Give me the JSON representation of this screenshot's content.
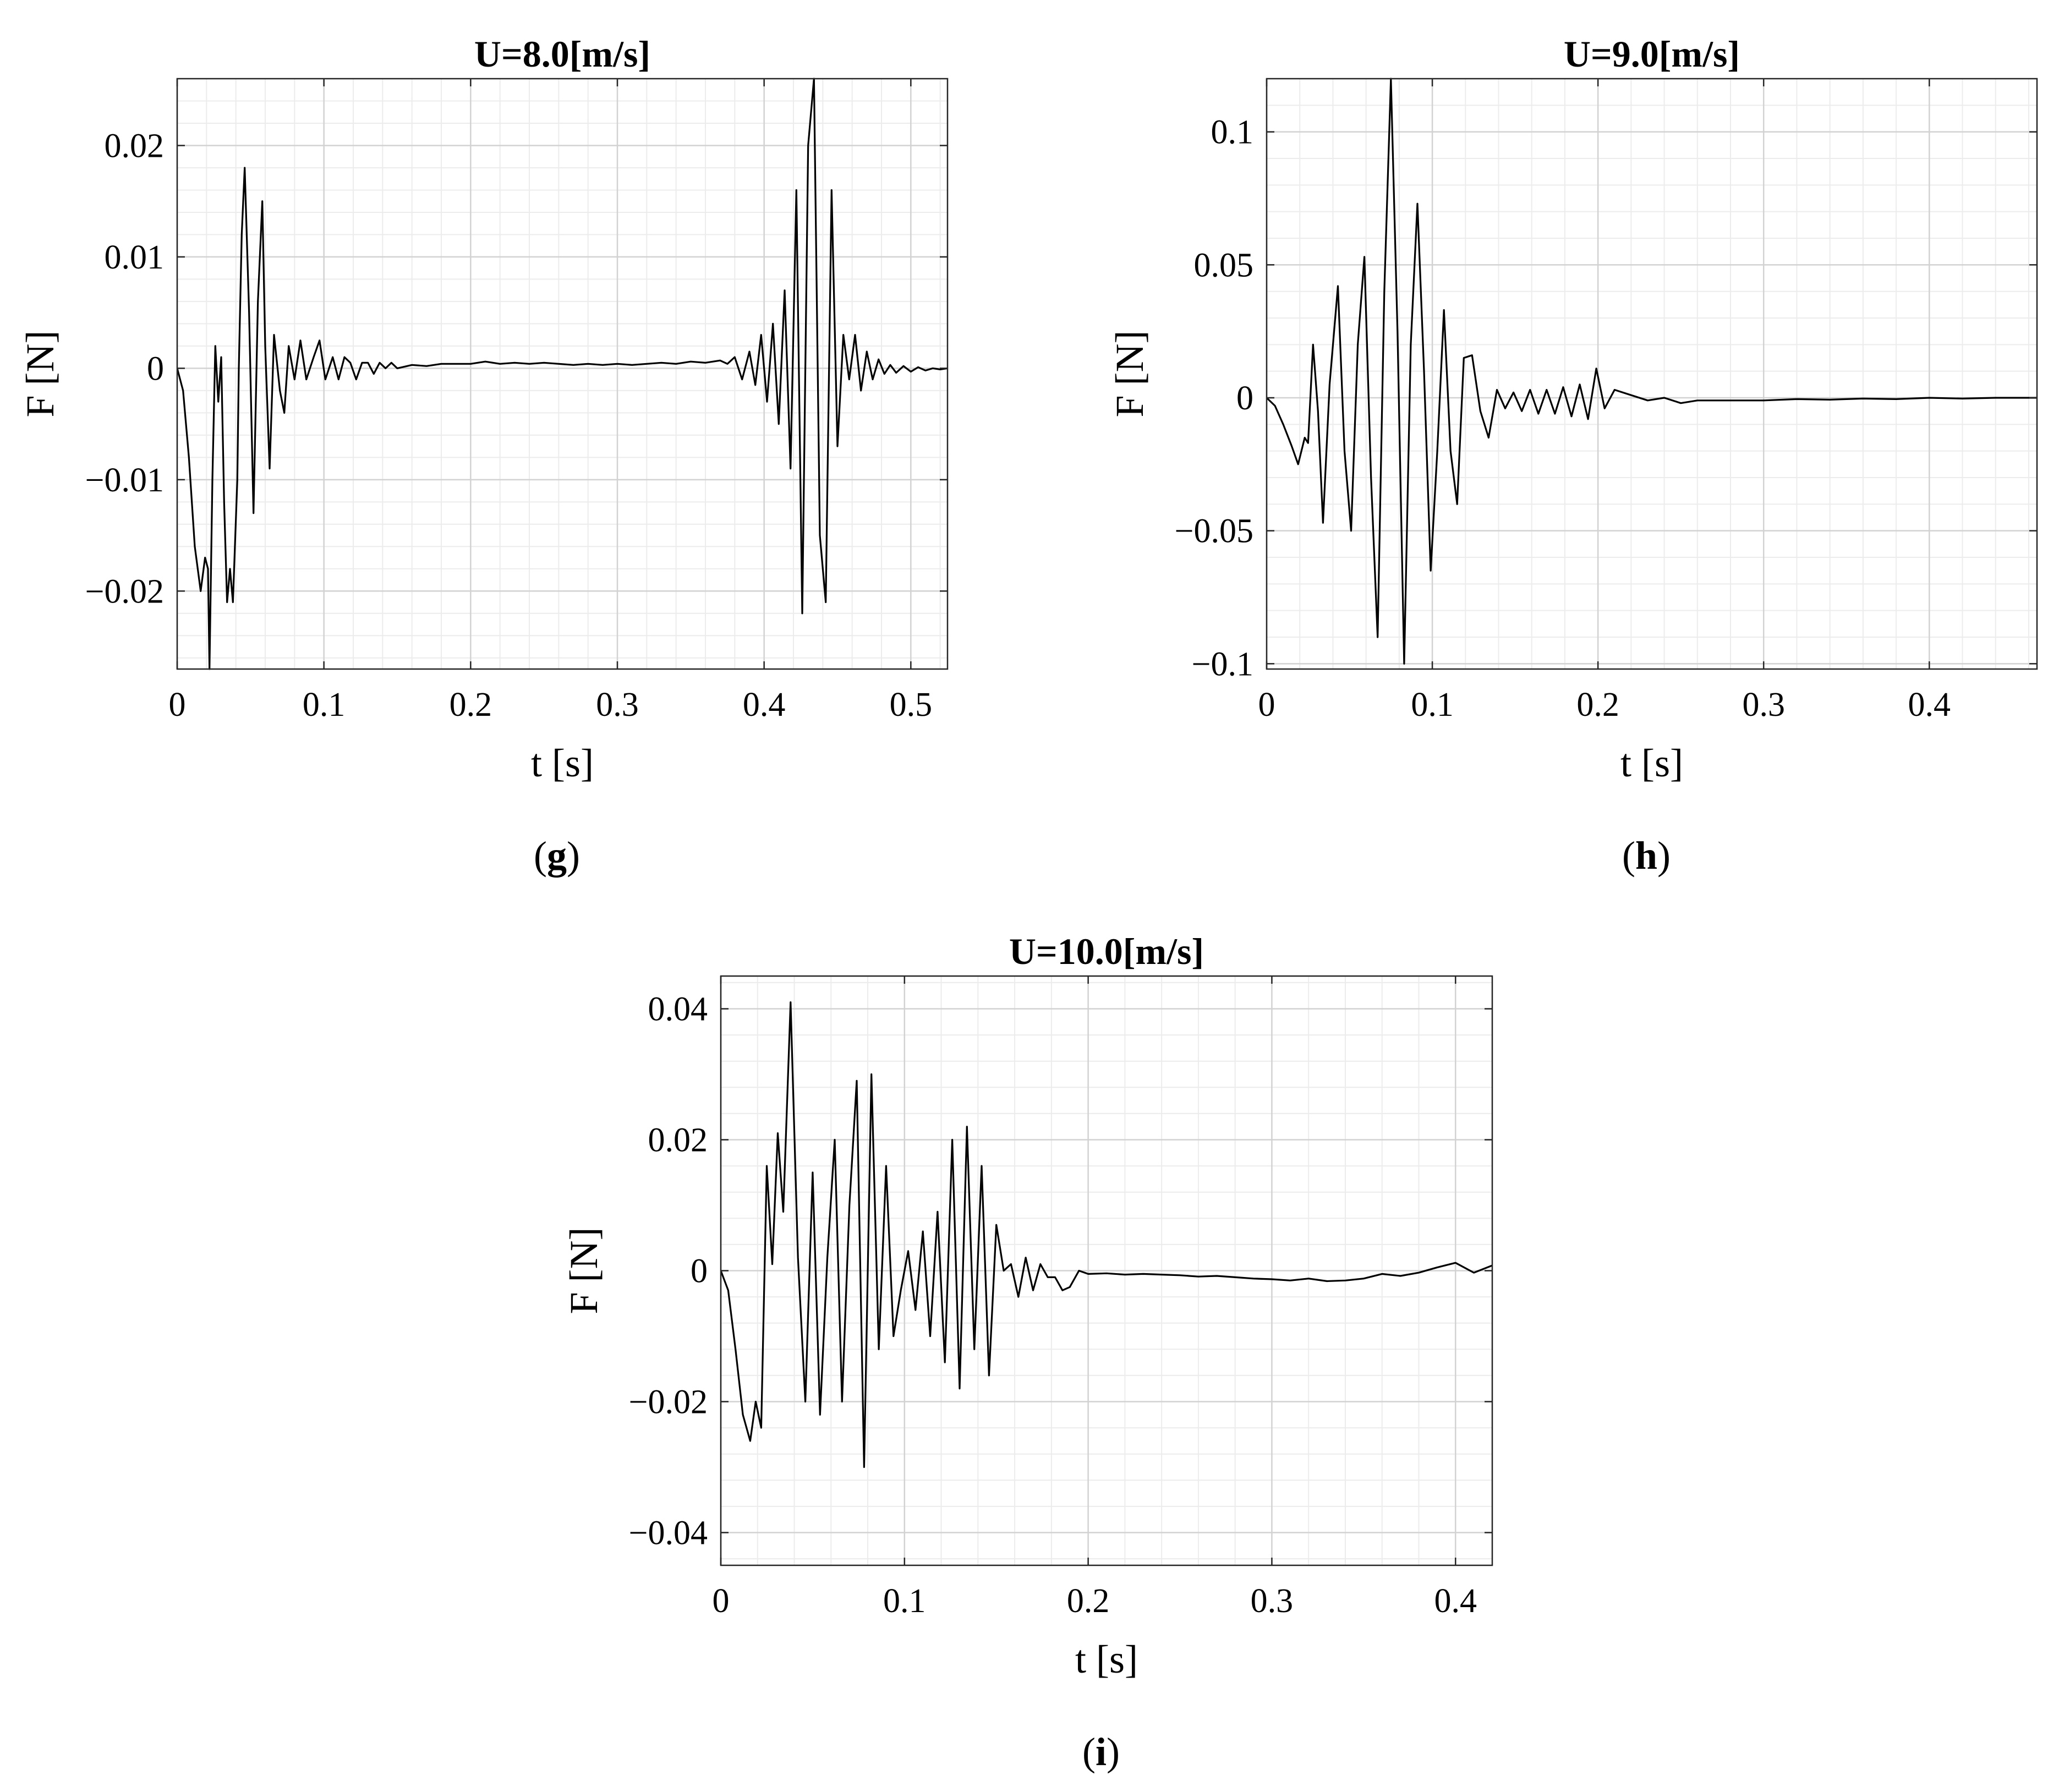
{
  "chart_data": [
    {
      "type": "line",
      "panel_label": "g",
      "title": "U=8.0[m/s]",
      "xlabel": "t [s]",
      "ylabel": "F [N]",
      "xlim": [
        0,
        0.525
      ],
      "ylim": [
        -0.027,
        0.026
      ],
      "xticks": [
        0,
        0.1,
        0.2,
        0.3,
        0.4,
        0.5
      ],
      "xtick_labels": [
        "0",
        "0.1",
        "0.2",
        "0.3",
        "0.4",
        "0.5"
      ],
      "yticks": [
        -0.02,
        -0.01,
        0,
        0.01,
        0.02
      ],
      "ytick_labels": [
        "-0.02",
        "-0.01",
        "0",
        "0.01",
        "0.02"
      ],
      "grid": "major+minor",
      "series": [
        {
          "color": "#000000",
          "x": [
            0,
            0.004,
            0.008,
            0.012,
            0.016,
            0.019,
            0.021,
            0.022,
            0.024,
            0.026,
            0.028,
            0.03,
            0.032,
            0.034,
            0.036,
            0.038,
            0.041,
            0.042,
            0.044,
            0.046,
            0.049,
            0.052,
            0.055,
            0.058,
            0.06,
            0.063,
            0.066,
            0.07,
            0.073,
            0.076,
            0.08,
            0.084,
            0.088,
            0.093,
            0.097,
            0.101,
            0.106,
            0.11,
            0.114,
            0.118,
            0.122,
            0.126,
            0.13,
            0.134,
            0.138,
            0.142,
            0.146,
            0.15,
            0.16,
            0.17,
            0.18,
            0.19,
            0.2,
            0.21,
            0.22,
            0.23,
            0.24,
            0.25,
            0.26,
            0.27,
            0.28,
            0.29,
            0.3,
            0.31,
            0.32,
            0.33,
            0.34,
            0.35,
            0.36,
            0.37,
            0.375,
            0.38,
            0.385,
            0.39,
            0.394,
            0.398,
            0.402,
            0.406,
            0.41,
            0.414,
            0.418,
            0.422,
            0.426,
            0.43,
            0.434,
            0.438,
            0.442,
            0.446,
            0.45,
            0.454,
            0.458,
            0.462,
            0.466,
            0.47,
            0.474,
            0.478,
            0.482,
            0.486,
            0.49,
            0.495,
            0.5,
            0.505,
            0.51,
            0.515,
            0.52,
            0.525
          ],
          "y": [
            0,
            -0.002,
            -0.008,
            -0.016,
            -0.02,
            -0.017,
            -0.018,
            -0.027,
            -0.01,
            0.002,
            -0.003,
            0.001,
            -0.012,
            -0.021,
            -0.018,
            -0.021,
            -0.01,
            0,
            0.012,
            0.018,
            0.005,
            -0.013,
            0.006,
            0.015,
            0.002,
            -0.009,
            0.003,
            -0.002,
            -0.004,
            0.002,
            -0.001,
            0.0025,
            -0.001,
            0.001,
            0.0025,
            -0.001,
            0.001,
            -0.001,
            0.001,
            0.0005,
            -0.001,
            0.0005,
            0.0005,
            -0.0005,
            0.0005,
            0,
            0.0005,
            0,
            0.0003,
            0.0002,
            0.0004,
            0.0004,
            0.0004,
            0.0006,
            0.0004,
            0.0005,
            0.0004,
            0.0005,
            0.0004,
            0.0003,
            0.0004,
            0.0003,
            0.0004,
            0.0003,
            0.0004,
            0.0005,
            0.0004,
            0.0006,
            0.0005,
            0.0007,
            0.0004,
            0.001,
            -0.001,
            0.0015,
            -0.0015,
            0.003,
            -0.003,
            0.004,
            -0.005,
            0.007,
            -0.009,
            0.016,
            -0.022,
            0.02,
            0.026,
            -0.015,
            -0.021,
            0.016,
            -0.007,
            0.003,
            -0.001,
            0.003,
            -0.002,
            0.0015,
            -0.001,
            0.0008,
            -0.0005,
            0.0003,
            -0.0004,
            0.0002,
            -0.0003,
            0.0001,
            -0.0002,
            0,
            -0.0001,
            0
          ]
        }
      ]
    },
    {
      "type": "line",
      "panel_label": "h",
      "title": "U=9.0[m/s]",
      "xlabel": "t [s]",
      "ylabel": "F [N]",
      "xlim": [
        0,
        0.465
      ],
      "ylim": [
        -0.102,
        0.12
      ],
      "xticks": [
        0,
        0.1,
        0.2,
        0.3,
        0.4
      ],
      "xtick_labels": [
        "0",
        "0.1",
        "0.2",
        "0.3",
        "0.4"
      ],
      "yticks": [
        -0.1,
        -0.05,
        0,
        0.05,
        0.1
      ],
      "ytick_labels": [
        "-0.1",
        "-0.05",
        "0",
        "0.05",
        "0.1"
      ],
      "grid": "major+minor",
      "series": [
        {
          "color": "#000000",
          "x": [
            0,
            0.005,
            0.01,
            0.015,
            0.019,
            0.023,
            0.025,
            0.028,
            0.031,
            0.034,
            0.038,
            0.043,
            0.047,
            0.051,
            0.055,
            0.059,
            0.063,
            0.067,
            0.071,
            0.075,
            0.079,
            0.083,
            0.087,
            0.091,
            0.095,
            0.099,
            0.103,
            0.107,
            0.111,
            0.115,
            0.119,
            0.124,
            0.129,
            0.134,
            0.139,
            0.144,
            0.149,
            0.154,
            0.159,
            0.164,
            0.169,
            0.174,
            0.179,
            0.184,
            0.189,
            0.194,
            0.199,
            0.204,
            0.21,
            0.22,
            0.23,
            0.24,
            0.25,
            0.26,
            0.28,
            0.3,
            0.32,
            0.34,
            0.36,
            0.38,
            0.4,
            0.42,
            0.44,
            0.465
          ],
          "y": [
            0,
            -0.003,
            -0.01,
            -0.018,
            -0.025,
            -0.015,
            -0.017,
            0.02,
            -0.005,
            -0.047,
            0.005,
            0.042,
            -0.02,
            -0.05,
            0.02,
            0.053,
            -0.03,
            -0.09,
            0.04,
            0.12,
            0.025,
            -0.1,
            0.02,
            0.073,
            0.01,
            -0.065,
            -0.02,
            0.033,
            -0.02,
            -0.04,
            0.015,
            0.016,
            -0.005,
            -0.015,
            0.003,
            -0.004,
            0.002,
            -0.005,
            0.003,
            -0.006,
            0.003,
            -0.006,
            0.004,
            -0.007,
            0.005,
            -0.008,
            0.011,
            -0.004,
            0.003,
            0.001,
            -0.001,
            0,
            -0.002,
            -0.001,
            -0.001,
            -0.001,
            -0.0005,
            -0.0007,
            -0.0003,
            -0.0005,
            0,
            -0.0003,
            0,
            0
          ]
        }
      ]
    },
    {
      "type": "line",
      "panel_label": "i",
      "title": "U=10.0[m/s]",
      "xlabel": "t [s]",
      "ylabel": "F [N]",
      "xlim": [
        0,
        0.42
      ],
      "ylim": [
        -0.045,
        0.045
      ],
      "xticks": [
        0,
        0.1,
        0.2,
        0.3,
        0.4
      ],
      "xtick_labels": [
        "0",
        "0.1",
        "0.2",
        "0.3",
        "0.4"
      ],
      "yticks": [
        -0.04,
        -0.02,
        0,
        0.02,
        0.04
      ],
      "ytick_labels": [
        "-0.04",
        "-0.02",
        "0",
        "0.02",
        "0.04"
      ],
      "grid": "major+minor",
      "series": [
        {
          "color": "#000000",
          "x": [
            0,
            0.004,
            0.008,
            0.012,
            0.016,
            0.019,
            0.022,
            0.025,
            0.028,
            0.031,
            0.034,
            0.038,
            0.042,
            0.046,
            0.05,
            0.054,
            0.058,
            0.062,
            0.066,
            0.07,
            0.074,
            0.078,
            0.082,
            0.086,
            0.09,
            0.094,
            0.098,
            0.102,
            0.106,
            0.11,
            0.114,
            0.118,
            0.122,
            0.126,
            0.13,
            0.134,
            0.138,
            0.142,
            0.146,
            0.15,
            0.154,
            0.158,
            0.162,
            0.166,
            0.17,
            0.174,
            0.178,
            0.182,
            0.186,
            0.19,
            0.195,
            0.2,
            0.21,
            0.22,
            0.23,
            0.24,
            0.25,
            0.26,
            0.27,
            0.28,
            0.29,
            0.3,
            0.31,
            0.32,
            0.33,
            0.34,
            0.35,
            0.36,
            0.37,
            0.38,
            0.39,
            0.4,
            0.41,
            0.42
          ],
          "y": [
            0,
            -0.003,
            -0.012,
            -0.022,
            -0.026,
            -0.02,
            -0.024,
            0.016,
            0.001,
            0.021,
            0.009,
            0.041,
            0.002,
            -0.02,
            0.015,
            -0.022,
            0.002,
            0.02,
            -0.02,
            0.01,
            0.029,
            -0.03,
            0.03,
            -0.012,
            0.016,
            -0.01,
            -0.003,
            0.003,
            -0.006,
            0.006,
            -0.01,
            0.009,
            -0.014,
            0.02,
            -0.018,
            0.022,
            -0.012,
            0.016,
            -0.016,
            0.007,
            0,
            0.001,
            -0.004,
            0.002,
            -0.003,
            0.001,
            -0.001,
            -0.001,
            -0.003,
            -0.0025,
            0,
            -0.0005,
            -0.0004,
            -0.0006,
            -0.0005,
            -0.0006,
            -0.0007,
            -0.0009,
            -0.0008,
            -0.001,
            -0.0012,
            -0.0013,
            -0.0015,
            -0.0012,
            -0.0016,
            -0.0015,
            -0.0012,
            -0.0005,
            -0.0008,
            -0.0003,
            0.0005,
            0.0012,
            -0.0003,
            0.0008
          ]
        }
      ]
    }
  ]
}
